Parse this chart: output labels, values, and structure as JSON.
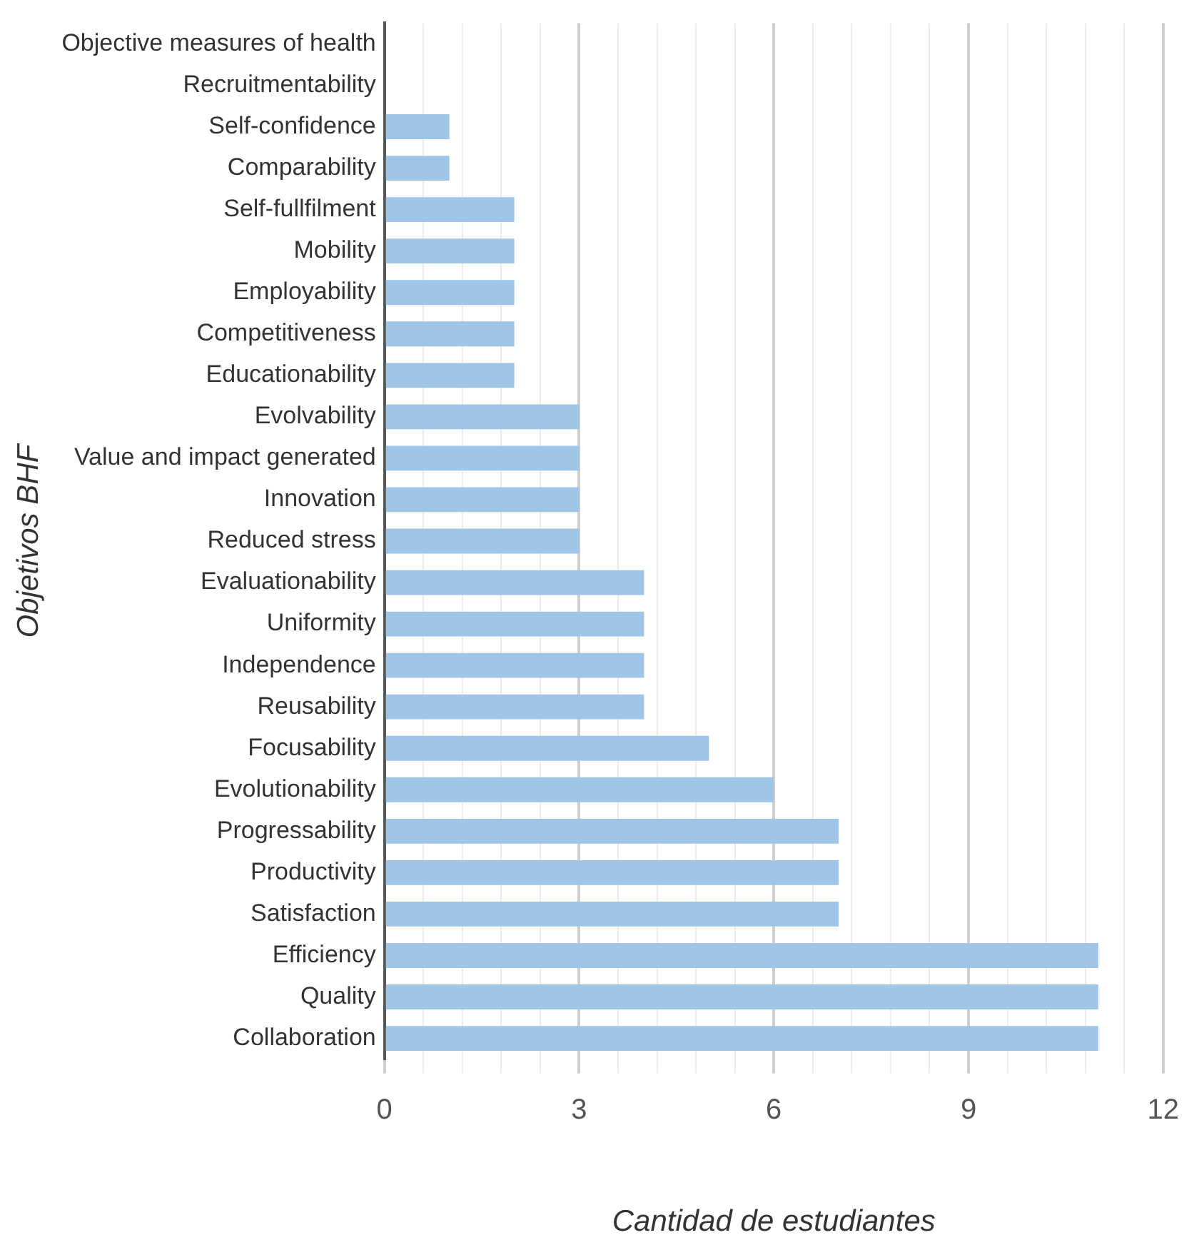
{
  "chart_data": {
    "type": "bar",
    "orientation": "horizontal",
    "xlabel": "Cantidad de estudiantes",
    "ylabel": "Objetivos BHF",
    "categories": [
      "Objective measures of health",
      "Recruitmentability",
      "Self-confidence",
      "Comparability",
      "Self-fullfilment",
      "Mobility",
      "Employability",
      "Competitiveness",
      "Educationability",
      "Evolvability",
      "Value and impact generated",
      "Innovation",
      "Reduced stress",
      "Evaluationability",
      "Uniformity",
      "Independence",
      "Reusability",
      "Focusability",
      "Evolutionability",
      "Progressability",
      "Productivity",
      "Satisfaction",
      "Efficiency",
      "Quality",
      "Collaboration"
    ],
    "values": [
      0,
      0,
      1,
      1,
      2,
      2,
      2,
      2,
      2,
      3,
      3,
      3,
      3,
      4,
      4,
      4,
      4,
      5,
      6,
      7,
      7,
      7,
      11,
      11,
      11
    ],
    "color": "#9fc5e8",
    "xlim": [
      0,
      12
    ],
    "xticks": [
      0,
      {
        "value": 0.6,
        "label": null
      },
      {
        "value": 1.2,
        "label": null
      },
      {
        "value": 1.8,
        "label": null
      },
      {
        "value": 2.4,
        "label": null
      },
      3,
      {
        "value": 3.6,
        "label": null
      },
      {
        "value": 4.2,
        "label": null
      },
      {
        "value": 4.8,
        "label": null
      },
      {
        "value": 5.4,
        "label": null
      },
      6,
      {
        "value": 6.6,
        "label": null
      },
      {
        "value": 7.2,
        "label": null
      },
      {
        "value": 7.8,
        "label": null
      },
      {
        "value": 8.4,
        "label": null
      },
      9,
      {
        "value": 9.6,
        "label": null
      },
      {
        "value": 10.2,
        "label": null
      },
      {
        "value": 10.8,
        "label": null
      },
      {
        "value": 11.4,
        "label": null
      },
      12
    ],
    "grid": "x"
  }
}
